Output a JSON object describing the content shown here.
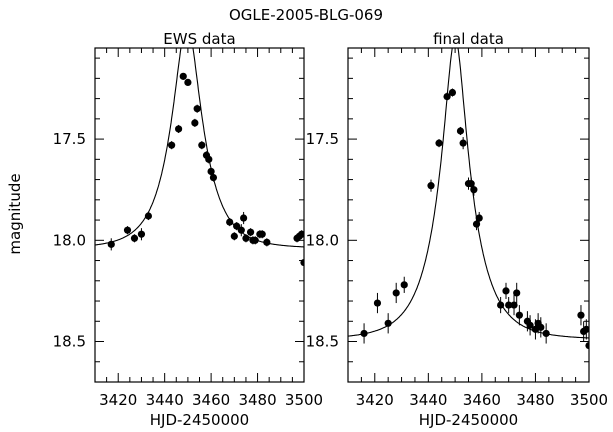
{
  "page_title": "OGLE-2005-BLG-069",
  "shared_ylabel": "magnitude",
  "chart_data": [
    {
      "type": "scatter",
      "title": "EWS data",
      "xlabel": "HJD-2450000",
      "ylabel": "magnitude",
      "xlim": [
        3410,
        3500
      ],
      "ylim": [
        18.7,
        17.05
      ],
      "y_inverted": true,
      "xticks": [
        3420,
        3440,
        3460,
        3480,
        3500
      ],
      "yticks": [
        17.5,
        18.0,
        18.5
      ],
      "model_curve": {
        "t0": 3449.6,
        "u0": 0.38,
        "tE": 13.0,
        "base_mag": 18.04
      },
      "points": [
        {
          "x": 3417,
          "y": 18.02,
          "err": 0.03
        },
        {
          "x": 3424,
          "y": 17.95,
          "err": 0.02
        },
        {
          "x": 3427,
          "y": 17.99,
          "err": 0.02
        },
        {
          "x": 3430,
          "y": 17.97,
          "err": 0.03
        },
        {
          "x": 3433,
          "y": 17.88,
          "err": 0.02
        },
        {
          "x": 3443,
          "y": 17.53,
          "err": 0.02
        },
        {
          "x": 3446,
          "y": 17.45,
          "err": 0.02
        },
        {
          "x": 3448,
          "y": 17.19,
          "err": 0.01
        },
        {
          "x": 3450,
          "y": 17.22,
          "err": 0.01
        },
        {
          "x": 3453,
          "y": 17.42,
          "err": 0.02
        },
        {
          "x": 3454,
          "y": 17.35,
          "err": 0.02
        },
        {
          "x": 3456,
          "y": 17.53,
          "err": 0.02
        },
        {
          "x": 3458,
          "y": 17.58,
          "err": 0.02
        },
        {
          "x": 3459,
          "y": 17.6,
          "err": 0.02
        },
        {
          "x": 3460,
          "y": 17.66,
          "err": 0.02
        },
        {
          "x": 3461,
          "y": 17.69,
          "err": 0.02
        },
        {
          "x": 3468,
          "y": 17.91,
          "err": 0.02
        },
        {
          "x": 3470,
          "y": 17.98,
          "err": 0.02
        },
        {
          "x": 3471,
          "y": 17.93,
          "err": 0.02
        },
        {
          "x": 3473,
          "y": 17.95,
          "err": 0.03
        },
        {
          "x": 3474,
          "y": 17.89,
          "err": 0.03
        },
        {
          "x": 3475,
          "y": 17.99,
          "err": 0.02
        },
        {
          "x": 3477,
          "y": 17.96,
          "err": 0.02
        },
        {
          "x": 3478,
          "y": 18.0,
          "err": 0.02
        },
        {
          "x": 3479,
          "y": 18.0,
          "err": 0.02
        },
        {
          "x": 3481,
          "y": 17.97,
          "err": 0.02
        },
        {
          "x": 3482,
          "y": 17.97,
          "err": 0.02
        },
        {
          "x": 3484,
          "y": 18.01,
          "err": 0.02
        },
        {
          "x": 3497,
          "y": 17.99,
          "err": 0.02
        },
        {
          "x": 3498,
          "y": 17.98,
          "err": 0.02
        },
        {
          "x": 3499,
          "y": 17.97,
          "err": 0.02
        },
        {
          "x": 3500,
          "y": 18.11,
          "err": 0.03
        }
      ]
    },
    {
      "type": "scatter",
      "title": "final data",
      "xlabel": "HJD-2450000",
      "ylabel": "",
      "xlim": [
        3410,
        3500
      ],
      "ylim": [
        18.7,
        17.05
      ],
      "y_inverted": true,
      "xticks": [
        3420,
        3440,
        3460,
        3480,
        3500
      ],
      "yticks": [
        17.5,
        18.0,
        18.5
      ],
      "model_curve": {
        "t0": 3450.0,
        "u0": 0.26,
        "tE": 13.0,
        "base_mag": 18.49
      },
      "points": [
        {
          "x": 3416,
          "y": 18.46,
          "err": 0.05
        },
        {
          "x": 3421,
          "y": 18.31,
          "err": 0.05
        },
        {
          "x": 3425,
          "y": 18.41,
          "err": 0.05
        },
        {
          "x": 3428,
          "y": 18.26,
          "err": 0.05
        },
        {
          "x": 3431,
          "y": 18.22,
          "err": 0.04
        },
        {
          "x": 3441,
          "y": 17.73,
          "err": 0.03
        },
        {
          "x": 3444,
          "y": 17.52,
          "err": 0.02
        },
        {
          "x": 3447,
          "y": 17.29,
          "err": 0.02
        },
        {
          "x": 3449,
          "y": 17.27,
          "err": 0.02
        },
        {
          "x": 3452,
          "y": 17.46,
          "err": 0.02
        },
        {
          "x": 3453,
          "y": 17.52,
          "err": 0.03
        },
        {
          "x": 3455,
          "y": 17.72,
          "err": 0.03
        },
        {
          "x": 3456,
          "y": 17.72,
          "err": 0.03
        },
        {
          "x": 3457,
          "y": 17.75,
          "err": 0.03
        },
        {
          "x": 3458,
          "y": 17.92,
          "err": 0.03
        },
        {
          "x": 3459,
          "y": 17.89,
          "err": 0.03
        },
        {
          "x": 3467,
          "y": 18.32,
          "err": 0.04
        },
        {
          "x": 3469,
          "y": 18.25,
          "err": 0.04
        },
        {
          "x": 3470,
          "y": 18.32,
          "err": 0.04
        },
        {
          "x": 3472,
          "y": 18.32,
          "err": 0.05
        },
        {
          "x": 3473,
          "y": 18.26,
          "err": 0.05
        },
        {
          "x": 3474,
          "y": 18.37,
          "err": 0.05
        },
        {
          "x": 3477,
          "y": 18.4,
          "err": 0.05
        },
        {
          "x": 3478,
          "y": 18.42,
          "err": 0.05
        },
        {
          "x": 3480,
          "y": 18.44,
          "err": 0.05
        },
        {
          "x": 3481,
          "y": 18.41,
          "err": 0.05
        },
        {
          "x": 3482,
          "y": 18.43,
          "err": 0.05
        },
        {
          "x": 3484,
          "y": 18.46,
          "err": 0.05
        },
        {
          "x": 3497,
          "y": 18.37,
          "err": 0.05
        },
        {
          "x": 3498,
          "y": 18.45,
          "err": 0.05
        },
        {
          "x": 3499,
          "y": 18.44,
          "err": 0.05
        },
        {
          "x": 3500,
          "y": 18.52,
          "err": 0.06
        }
      ]
    }
  ]
}
